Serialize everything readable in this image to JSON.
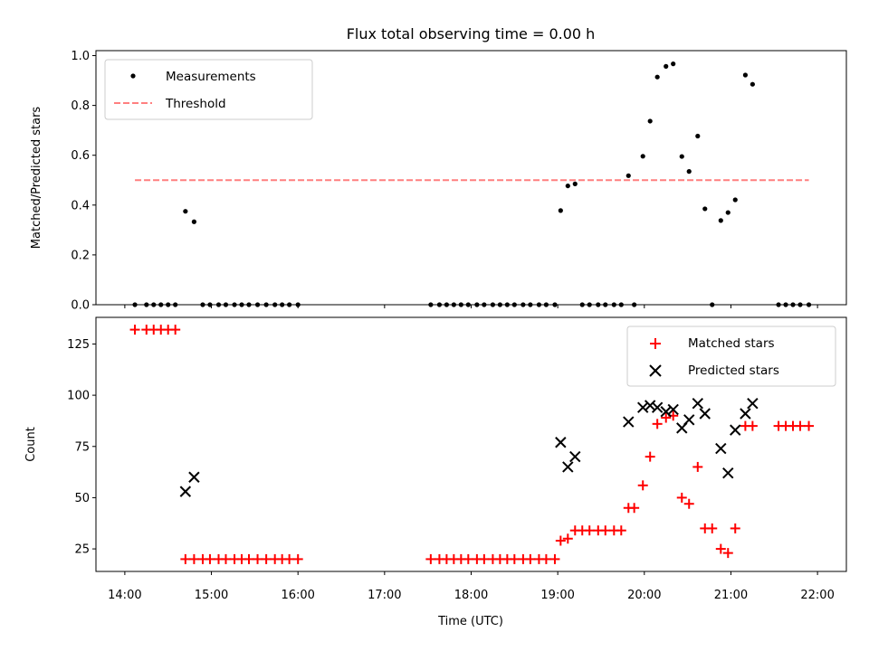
{
  "chart_data": [
    {
      "type": "scatter",
      "title": "Flux total observing time = 0.00 h",
      "xlabel": "",
      "ylabel": "Matched/Predicted stars",
      "xlim": [
        "13:40",
        "22:20"
      ],
      "ylim": [
        0,
        1.02
      ],
      "yticks": [
        0.0,
        0.2,
        0.4,
        0.6,
        0.8,
        1.0
      ],
      "ytick_labels": [
        "0.0",
        "0.2",
        "0.4",
        "0.6",
        "0.8",
        "1.0"
      ],
      "legend_position": "upper left",
      "series": [
        {
          "name": "Measurements",
          "kind": "scatter",
          "marker": "dot",
          "color": "#000000",
          "x": [
            "14:07",
            "14:15",
            "14:20",
            "14:25",
            "14:30",
            "14:35",
            "14:42",
            "14:48",
            "14:54",
            "14:59",
            "15:05",
            "15:10",
            "15:16",
            "15:21",
            "15:26",
            "15:32",
            "15:38",
            "15:44",
            "15:49",
            "15:54",
            "16:00",
            "17:32",
            "17:38",
            "17:43",
            "17:48",
            "17:53",
            "17:58",
            "18:04",
            "18:09",
            "18:15",
            "18:20",
            "18:25",
            "18:30",
            "18:36",
            "18:41",
            "18:47",
            "18:52",
            "18:58",
            "19:02",
            "19:07",
            "19:12",
            "19:17",
            "19:22",
            "19:28",
            "19:33",
            "19:39",
            "19:44",
            "19:49",
            "19:53",
            "19:59",
            "20:04",
            "20:09",
            "20:15",
            "20:20",
            "20:26",
            "20:31",
            "20:37",
            "20:42",
            "20:47",
            "20:53",
            "20:58",
            "21:03",
            "21:10",
            "21:15",
            "21:33",
            "21:38",
            "21:43",
            "21:48",
            "21:54"
          ],
          "y": [
            0.0,
            0.0,
            0.0,
            0.0,
            0.0,
            0.0,
            0.375,
            0.333,
            0.0,
            0.0,
            0.0,
            0.0,
            0.0,
            0.0,
            0.0,
            0.0,
            0.0,
            0.0,
            0.0,
            0.0,
            0.0,
            0.0,
            0.0,
            0.0,
            0.0,
            0.0,
            0.0,
            0.0,
            0.0,
            0.0,
            0.0,
            0.0,
            0.0,
            0.0,
            0.0,
            0.0,
            0.0,
            0.0,
            0.378,
            0.477,
            0.485,
            0.0,
            0.0,
            0.0,
            0.0,
            0.0,
            0.0,
            0.518,
            0.0,
            0.596,
            0.737,
            0.914,
            0.957,
            0.967,
            0.595,
            0.535,
            0.677,
            0.385,
            0.0,
            0.338,
            0.37,
            0.421,
            0.922,
            0.885,
            0.0,
            0.0,
            0.0,
            0.0,
            0.0
          ]
        },
        {
          "name": "Threshold",
          "kind": "line",
          "style": "dashed",
          "color": "#ff7f7f",
          "x": [
            "14:07",
            "21:54"
          ],
          "y": [
            0.5,
            0.5
          ]
        }
      ]
    },
    {
      "type": "scatter",
      "title": "",
      "xlabel": "Time (UTC)",
      "ylabel": "Count",
      "xlim": [
        "13:40",
        "22:20"
      ],
      "ylim": [
        14,
        138
      ],
      "yticks": [
        25,
        50,
        75,
        100,
        125
      ],
      "ytick_labels": [
        "25",
        "50",
        "75",
        "100",
        "125"
      ],
      "xticks": [
        "14:00",
        "15:00",
        "16:00",
        "17:00",
        "18:00",
        "19:00",
        "20:00",
        "21:00",
        "22:00"
      ],
      "xtick_labels": [
        "14:00",
        "15:00",
        "16:00",
        "17:00",
        "18:00",
        "19:00",
        "20:00",
        "21:00",
        "22:00"
      ],
      "legend_position": "upper right",
      "series": [
        {
          "name": "Matched stars",
          "kind": "scatter",
          "marker": "plus",
          "color": "#ff0000",
          "x": [
            "14:07",
            "14:15",
            "14:20",
            "14:25",
            "14:30",
            "14:35",
            "14:42",
            "14:48",
            "14:54",
            "14:59",
            "15:05",
            "15:10",
            "15:16",
            "15:21",
            "15:26",
            "15:32",
            "15:38",
            "15:44",
            "15:49",
            "15:54",
            "16:00",
            "17:32",
            "17:38",
            "17:43",
            "17:48",
            "17:53",
            "17:58",
            "18:04",
            "18:09",
            "18:15",
            "18:20",
            "18:25",
            "18:30",
            "18:36",
            "18:41",
            "18:47",
            "18:52",
            "18:58",
            "19:02",
            "19:07",
            "19:12",
            "19:17",
            "19:22",
            "19:28",
            "19:33",
            "19:39",
            "19:44",
            "19:49",
            "19:53",
            "19:59",
            "20:04",
            "20:09",
            "20:15",
            "20:20",
            "20:26",
            "20:31",
            "20:37",
            "20:42",
            "20:47",
            "20:53",
            "20:58",
            "21:03",
            "21:10",
            "21:15",
            "21:33",
            "21:38",
            "21:43",
            "21:48",
            "21:54"
          ],
          "y": [
            132,
            132,
            132,
            132,
            132,
            132,
            20,
            20,
            20,
            20,
            20,
            20,
            20,
            20,
            20,
            20,
            20,
            20,
            20,
            20,
            20,
            20,
            20,
            20,
            20,
            20,
            20,
            20,
            20,
            20,
            20,
            20,
            20,
            20,
            20,
            20,
            20,
            20,
            29,
            30,
            34,
            34,
            34,
            34,
            34,
            34,
            34,
            45,
            45,
            56,
            70,
            86,
            89,
            90,
            50,
            47,
            65,
            35,
            35,
            25,
            23,
            35,
            85,
            85,
            85,
            85,
            85,
            85,
            85
          ]
        },
        {
          "name": "Predicted stars",
          "kind": "scatter",
          "marker": "x",
          "color": "#000000",
          "x": [
            "14:42",
            "14:48",
            "19:02",
            "19:07",
            "19:12",
            "19:49",
            "19:59",
            "20:04",
            "20:09",
            "20:15",
            "20:20",
            "20:26",
            "20:31",
            "20:37",
            "20:42",
            "20:53",
            "20:58",
            "21:03",
            "21:10",
            "21:15"
          ],
          "y": [
            53,
            60,
            77,
            65,
            70,
            87,
            94,
            95,
            94,
            92,
            93,
            84,
            88,
            96,
            91,
            74,
            62,
            83,
            91,
            96
          ]
        }
      ]
    }
  ]
}
